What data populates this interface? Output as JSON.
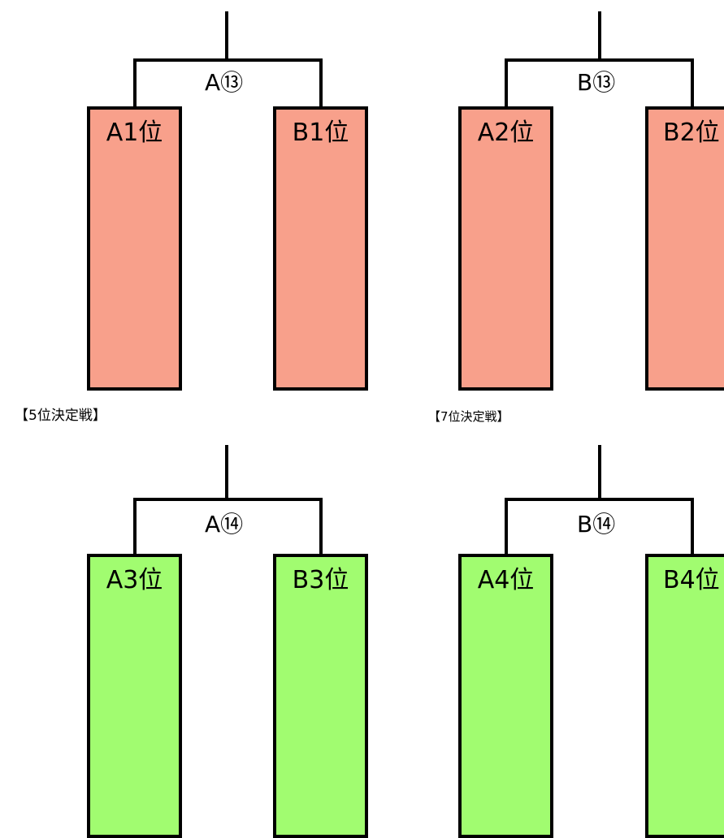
{
  "colors": {
    "red_box": "#f8a08b",
    "green_box": "#a1fc70",
    "line": "#000000"
  },
  "brackets": {
    "b1": {
      "match": "A⑬",
      "left": "A1位",
      "right": "B1位"
    },
    "b2": {
      "match": "B⑬",
      "left": "A2位",
      "right": "B2位"
    },
    "b3": {
      "match": "A⑭",
      "left": "A3位",
      "right": "B3位"
    },
    "b4": {
      "match": "B⑭",
      "left": "A4位",
      "right": "B4位"
    }
  },
  "sections": {
    "fifth_place": "【5位決定戦】",
    "seventh_place": "【7位決定戦】"
  }
}
